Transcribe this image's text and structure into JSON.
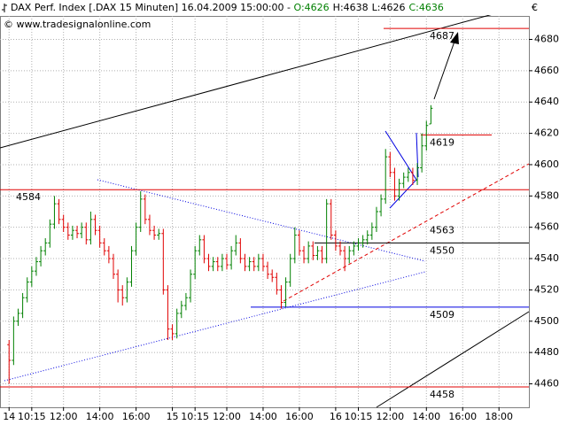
{
  "header": {
    "title": "DAX Perf. Index [.DAX  15 Minuten] 16.04.2009 15:00:00 - ",
    "open": "O:4626",
    "high": "H:4638",
    "low": "L:4626",
    "close": "C:4636",
    "watermark": "© www.tradesignalonline.com",
    "currency": "€"
  },
  "chart_data": {
    "type": "ohlc",
    "up_color": "#008000",
    "down_color": "#e00000",
    "grid": true,
    "xlim": [
      -2,
      114.6
    ],
    "ylim": [
      4445,
      4695
    ],
    "yticks": [
      4460,
      4480,
      4500,
      4520,
      4540,
      4560,
      4580,
      4600,
      4620,
      4640,
      4660,
      4680
    ],
    "xticks": [
      {
        "value": 0,
        "label": "14"
      },
      {
        "value": 5,
        "label": "10:15"
      },
      {
        "value": 12,
        "label": "12:00"
      },
      {
        "value": 20,
        "label": "14:00"
      },
      {
        "value": 28,
        "label": "16:00"
      },
      {
        "value": 36,
        "label": "15"
      },
      {
        "value": 41,
        "label": "10:15"
      },
      {
        "value": 48,
        "label": "12:00"
      },
      {
        "value": 56,
        "label": "14:00"
      },
      {
        "value": 64,
        "label": "16:00"
      },
      {
        "value": 72,
        "label": "16"
      },
      {
        "value": 77,
        "label": "10:15"
      },
      {
        "value": 84,
        "label": "12:00"
      },
      {
        "value": 92,
        "label": "14:00"
      },
      {
        "value": 100,
        "label": "16:00"
      },
      {
        "value": 108,
        "label": "18:00"
      }
    ],
    "x": [
      0,
      1,
      2,
      3,
      4,
      5,
      6,
      7,
      8,
      9,
      10,
      11,
      12,
      13,
      14,
      15,
      16,
      17,
      18,
      19,
      20,
      21,
      22,
      23,
      24,
      25,
      26,
      27,
      28,
      29,
      30,
      31,
      32,
      33,
      34,
      35,
      36,
      37,
      38,
      39,
      40,
      41,
      42,
      43,
      44,
      45,
      46,
      47,
      48,
      49,
      50,
      51,
      52,
      53,
      54,
      55,
      56,
      57,
      58,
      59,
      60,
      61,
      62,
      63,
      64,
      65,
      66,
      67,
      68,
      69,
      70,
      71,
      72,
      73,
      74,
      75,
      76,
      77,
      78,
      79,
      80,
      81,
      82,
      83,
      84,
      85,
      86,
      87,
      88,
      89,
      90,
      91,
      92,
      93
    ],
    "open": [
      4485,
      4475,
      4500,
      4505,
      4515,
      4525,
      4532,
      4538,
      4545,
      4550,
      4562,
      4575,
      4565,
      4560,
      4555,
      4558,
      4556,
      4560,
      4552,
      4565,
      4558,
      4550,
      4545,
      4540,
      4530,
      4520,
      4515,
      4525,
      4545,
      4560,
      4578,
      4565,
      4558,
      4555,
      4556,
      4520,
      4495,
      4492,
      4505,
      4510,
      4515,
      4530,
      4545,
      4552,
      4540,
      4535,
      4538,
      4535,
      4540,
      4536,
      4545,
      4550,
      4540,
      4535,
      4538,
      4535,
      4540,
      4535,
      4530,
      4528,
      4520,
      4512,
      4525,
      4540,
      4555,
      4545,
      4540,
      4548,
      4542,
      4545,
      4540,
      4575,
      4555,
      4548,
      4545,
      4540,
      4545,
      4548,
      4550,
      4552,
      4555,
      4560,
      4570,
      4578,
      4605,
      4595,
      4580,
      4588,
      4592,
      4595,
      4590,
      4598,
      4612,
      4626
    ],
    "high": [
      4488,
      4503,
      4508,
      4518,
      4528,
      4535,
      4541,
      4548,
      4553,
      4565,
      4580,
      4578,
      4568,
      4563,
      4561,
      4561,
      4563,
      4563,
      4570,
      4568,
      4561,
      4553,
      4548,
      4543,
      4533,
      4523,
      4528,
      4548,
      4563,
      4583,
      4581,
      4568,
      4561,
      4559,
      4559,
      4523,
      4498,
      4508,
      4513,
      4518,
      4533,
      4548,
      4555,
      4555,
      4543,
      4541,
      4541,
      4543,
      4543,
      4548,
      4555,
      4553,
      4543,
      4541,
      4541,
      4543,
      4543,
      4538,
      4533,
      4531,
      4523,
      4528,
      4543,
      4560,
      4558,
      4548,
      4551,
      4551,
      4548,
      4548,
      4578,
      4578,
      4558,
      4551,
      4548,
      4548,
      4551,
      4553,
      4555,
      4558,
      4563,
      4573,
      4581,
      4610,
      4608,
      4598,
      4591,
      4595,
      4598,
      4598,
      4601,
      4620,
      4628,
      4638
    ],
    "low": [
      4460,
      4472,
      4497,
      4502,
      4512,
      4522,
      4529,
      4535,
      4542,
      4547,
      4559,
      4562,
      4557,
      4552,
      4552,
      4553,
      4553,
      4549,
      4549,
      4555,
      4547,
      4542,
      4537,
      4527,
      4512,
      4510,
      4512,
      4522,
      4542,
      4557,
      4562,
      4555,
      4552,
      4552,
      4517,
      4488,
      4488,
      4489,
      4502,
      4507,
      4512,
      4527,
      4542,
      4537,
      4532,
      4532,
      4532,
      4532,
      4533,
      4533,
      4542,
      4537,
      4532,
      4532,
      4532,
      4532,
      4532,
      4527,
      4525,
      4517,
      4508,
      4509,
      4522,
      4537,
      4542,
      4537,
      4537,
      4539,
      4539,
      4537,
      4537,
      4552,
      4545,
      4542,
      4532,
      4537,
      4542,
      4545,
      4547,
      4549,
      4552,
      4557,
      4567,
      4575,
      4592,
      4577,
      4577,
      4585,
      4589,
      4587,
      4587,
      4595,
      4609,
      4626
    ],
    "close": [
      4475,
      4500,
      4505,
      4515,
      4525,
      4532,
      4538,
      4545,
      4550,
      4562,
      4575,
      4565,
      4560,
      4555,
      4558,
      4556,
      4560,
      4552,
      4565,
      4558,
      4550,
      4545,
      4540,
      4530,
      4520,
      4515,
      4525,
      4545,
      4560,
      4578,
      4565,
      4558,
      4555,
      4556,
      4520,
      4495,
      4492,
      4505,
      4510,
      4515,
      4530,
      4545,
      4552,
      4540,
      4535,
      4538,
      4535,
      4540,
      4536,
      4545,
      4550,
      4540,
      4535,
      4538,
      4535,
      4540,
      4535,
      4530,
      4528,
      4520,
      4512,
      4525,
      4540,
      4555,
      4545,
      4540,
      4548,
      4542,
      4545,
      4540,
      4575,
      4555,
      4548,
      4545,
      4540,
      4545,
      4548,
      4550,
      4552,
      4555,
      4560,
      4570,
      4578,
      4605,
      4595,
      4580,
      4588,
      4592,
      4595,
      4590,
      4598,
      4612,
      4625,
      4636
    ],
    "levels": [
      4687,
      4619,
      4584,
      4563,
      4550,
      4509,
      4458
    ],
    "level_colors": [
      "#e00000",
      "#e00000",
      "#e00000",
      "#e00000",
      "#000000",
      "#0000e0",
      "#e00000"
    ]
  }
}
